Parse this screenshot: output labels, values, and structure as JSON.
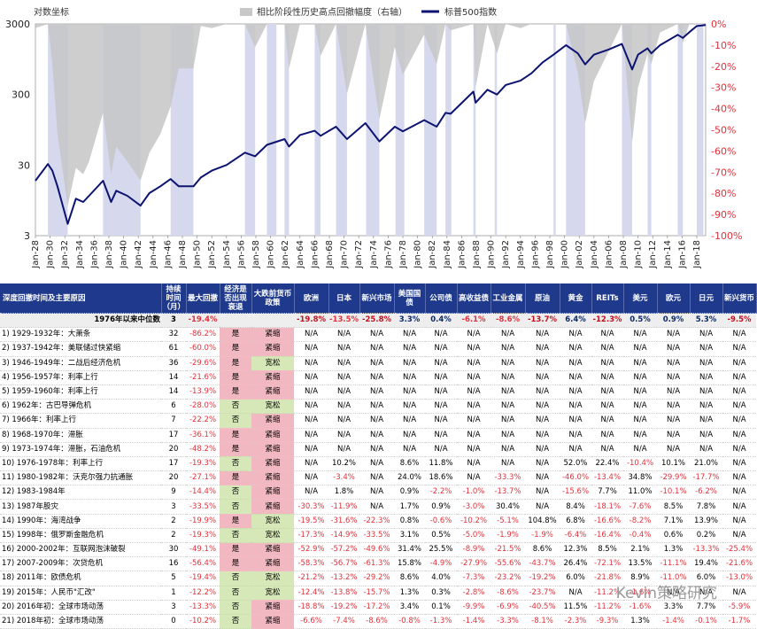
{
  "chart_data": {
    "type": "line",
    "left_axis_title": "对数坐标",
    "left_axis_ticks": [
      "3000",
      "300",
      "30",
      "3"
    ],
    "left_axis_values": [
      3000,
      300,
      30,
      3
    ],
    "right_axis_ticks": [
      "0%",
      "-10%",
      "-20%",
      "-30%",
      "-40%",
      "-50%",
      "-60%",
      "-70%",
      "-80%",
      "-90%",
      "-100%"
    ],
    "right_axis_values": [
      0,
      -10,
      -20,
      -30,
      -40,
      -50,
      -60,
      -70,
      -80,
      -90,
      -100
    ],
    "x_tick_labels": [
      "Jan-28",
      "Jan-30",
      "Jan-32",
      "Jan-34",
      "Jan-36",
      "Jan-38",
      "Jan-40",
      "Jan-42",
      "Jan-44",
      "Jan-46",
      "Jan-48",
      "Jan-50",
      "Jan-52",
      "Jan-54",
      "Jan-56",
      "Jan-58",
      "Jan-60",
      "Jan-62",
      "Jan-64",
      "Jan-66",
      "Jan-68",
      "Jan-70",
      "Jan-72",
      "Jan-74",
      "Jan-76",
      "Jan-78",
      "Jan-80",
      "Jan-82",
      "Jan-84",
      "Jan-86",
      "Jan-88",
      "Jan-90",
      "Jan-92",
      "Jan-94",
      "Jan-96",
      "Jan-98",
      "Jan-00",
      "Jan-02",
      "Jan-04",
      "Jan-06",
      "Jan-08",
      "Jan-10",
      "Jan-12",
      "Jan-14",
      "Jan-16",
      "Jan-18"
    ],
    "x_tick_years": [
      1928,
      1930,
      1932,
      1934,
      1936,
      1938,
      1940,
      1942,
      1944,
      1946,
      1948,
      1950,
      1952,
      1954,
      1956,
      1958,
      1960,
      1962,
      1964,
      1966,
      1968,
      1970,
      1972,
      1974,
      1976,
      1978,
      1980,
      1982,
      1984,
      1986,
      1988,
      1990,
      1992,
      1994,
      1996,
      1998,
      2000,
      2002,
      2004,
      2006,
      2008,
      2010,
      2012,
      2014,
      2016,
      2018
    ],
    "x_range": [
      1928,
      2019.2
    ],
    "legend": {
      "placement": "top",
      "area_label": "相比阶段性历史高点回撤幅度（右轴）",
      "line_label": "标普500指数"
    },
    "sp500": {
      "name": "标普500指数",
      "x": [
        1928.0,
        1929.7,
        1930.3,
        1931.0,
        1932.4,
        1933.5,
        1934.5,
        1935.3,
        1937.2,
        1938.3,
        1939.0,
        1940.5,
        1942.3,
        1943.5,
        1945.0,
        1946.4,
        1947.5,
        1949.5,
        1950.5,
        1952.0,
        1954.0,
        1956.5,
        1957.9,
        1959.5,
        1961.9,
        1962.5,
        1964.0,
        1966.0,
        1966.8,
        1968.9,
        1970.4,
        1972.9,
        1974.8,
        1976.9,
        1978.0,
        1980.9,
        1982.6,
        1983.8,
        1984.5,
        1987.6,
        1987.9,
        1989.5,
        1990.8,
        1992.0,
        1994.0,
        1995.5,
        1997.0,
        1998.5,
        2000.2,
        2001.8,
        2002.8,
        2004.0,
        2006.0,
        2007.8,
        2009.2,
        2010.0,
        2011.3,
        2011.8,
        2013.0,
        2015.4,
        2016.1,
        2017.0,
        2018.0,
        2019.2
      ],
      "values": [
        18,
        31,
        25,
        15,
        4.4,
        10,
        9,
        11,
        18,
        9,
        13,
        11,
        8,
        12,
        15,
        19,
        15,
        15,
        20,
        25,
        30,
        45,
        40,
        58,
        70,
        55,
        80,
        92,
        78,
        105,
        70,
        118,
        65,
        105,
        90,
        130,
        105,
        165,
        160,
        330,
        230,
        350,
        300,
        410,
        470,
        600,
        850,
        1100,
        1500,
        1150,
        800,
        1100,
        1300,
        1560,
        680,
        1100,
        1350,
        1150,
        1500,
        2100,
        1900,
        2300,
        2800,
        2900
      ]
    },
    "drawdown": {
      "name": "相比阶段性历史高点回撤幅度（右轴）",
      "x": [
        1928.0,
        1929.7,
        1930.3,
        1931.0,
        1932.4,
        1933.5,
        1934.5,
        1935.3,
        1937.2,
        1938.3,
        1939.0,
        1940.5,
        1942.3,
        1943.5,
        1945.0,
        1946.4,
        1947.5,
        1949.5,
        1950.5,
        1952.0,
        1954.0,
        1956.5,
        1957.9,
        1959.5,
        1961.9,
        1962.5,
        1964.0,
        1966.0,
        1966.8,
        1968.9,
        1970.4,
        1972.9,
        1974.8,
        1976.9,
        1978.0,
        1980.9,
        1982.6,
        1983.8,
        1984.5,
        1987.6,
        1987.9,
        1989.5,
        1990.8,
        1992.0,
        1994.0,
        1995.5,
        1997.0,
        1998.5,
        2000.2,
        2001.8,
        2002.8,
        2004.0,
        2006.0,
        2007.8,
        2009.2,
        2010.0,
        2011.3,
        2011.8,
        2013.0,
        2015.4,
        2016.1,
        2017.0,
        2018.0,
        2019.2
      ],
      "values": [
        -2,
        0,
        -19,
        -52,
        -86,
        -68,
        -71,
        -65,
        -42,
        -71,
        -58,
        -65,
        -74,
        -61,
        -52,
        -39,
        -21,
        -21,
        -1,
        -2,
        0,
        0,
        -11,
        0,
        0,
        -21,
        0,
        0,
        -15,
        0,
        -33,
        0,
        -45,
        -11,
        -24,
        -5,
        -19,
        0,
        -3,
        0,
        -30,
        0,
        -14,
        0,
        -2,
        0,
        0,
        0,
        0,
        -23,
        -47,
        -27,
        -13,
        0,
        -56,
        -30,
        -14,
        -19,
        -4,
        0,
        -9,
        0,
        0,
        0
      ]
    },
    "shaded_periods": [
      [
        1929.7,
        1932.4
      ],
      [
        1937.2,
        1942.3
      ],
      [
        1946.4,
        1949.5
      ],
      [
        1956.5,
        1957.9
      ],
      [
        1959.5,
        1960.8
      ],
      [
        1961.9,
        1962.5
      ],
      [
        1966.0,
        1966.8
      ],
      [
        1968.9,
        1970.4
      ],
      [
        1973.0,
        1974.8
      ],
      [
        1977.0,
        1978.2
      ],
      [
        1980.9,
        1982.6
      ],
      [
        1983.8,
        1984.6
      ],
      [
        1987.6,
        1987.9
      ],
      [
        1990.5,
        1990.8
      ],
      [
        1998.5,
        1998.8
      ],
      [
        2000.2,
        2002.8
      ],
      [
        2007.8,
        2009.2
      ],
      [
        2011.3,
        2011.8
      ],
      [
        2015.4,
        2016.1
      ],
      [
        2018.0,
        2018.9
      ]
    ]
  },
  "table": {
    "headers": [
      "深度回撤时间及主要原因",
      "持续时间（月）",
      "最大回撤",
      "经济是否出现衰退",
      "大跌前货币政策",
      "欧洲",
      "日本",
      "新兴市场",
      "美国国债",
      "公司债",
      "高收益债",
      "工业金属",
      "原油",
      "黄金",
      "REITs",
      "美元",
      "欧元",
      "日元",
      "新兴货币"
    ],
    "median": {
      "label": "1976年以来中位数",
      "months": "3",
      "maxdd": "-19.4%",
      "values": [
        "-19.8%",
        "-13.5%",
        "-25.8%",
        "3.3%",
        "0.4%",
        "-6.1%",
        "-8.6%",
        "-13.7%",
        "6.4%",
        "-12.3%",
        "0.5%",
        "0.9%",
        "5.3%",
        "-9.5%"
      ],
      "styles": [
        "m-neg-lt",
        "",
        "m-neg",
        "m-pos-lt",
        "m-pos-lt",
        "",
        "",
        "m-neg-lt",
        "m-pos",
        "m-neg-lt",
        "m-pos-lt",
        "m-pos-lt",
        "m-pos",
        "m-neg-lt"
      ]
    },
    "rows": [
      {
        "name": "1) 1929-1932年：大萧条",
        "months": "32",
        "maxdd": "-86.2%",
        "rec": "是",
        "policy": "紧缩",
        "values": [
          "N/A",
          "N/A",
          "N/A",
          "N/A",
          "N/A",
          "N/A",
          "N/A",
          "N/A",
          "N/A",
          "N/A",
          "N/A",
          "N/A",
          "N/A",
          "N/A"
        ]
      },
      {
        "name": "2) 1937-1942年：美联储过快紧缩",
        "months": "61",
        "maxdd": "-60.0%",
        "rec": "是",
        "policy": "紧缩",
        "values": [
          "N/A",
          "N/A",
          "N/A",
          "N/A",
          "N/A",
          "N/A",
          "N/A",
          "N/A",
          "N/A",
          "N/A",
          "N/A",
          "N/A",
          "N/A",
          "N/A"
        ]
      },
      {
        "name": "3) 1946-1949年：二战后经济危机",
        "months": "36",
        "maxdd": "-29.6%",
        "rec": "是",
        "policy": "宽松",
        "values": [
          "N/A",
          "N/A",
          "N/A",
          "N/A",
          "N/A",
          "N/A",
          "N/A",
          "N/A",
          "N/A",
          "N/A",
          "N/A",
          "N/A",
          "N/A",
          "N/A"
        ]
      },
      {
        "name": "4) 1956-1957年：利率上行",
        "months": "14",
        "maxdd": "-21.6%",
        "rec": "是",
        "policy": "紧缩",
        "values": [
          "N/A",
          "N/A",
          "N/A",
          "N/A",
          "N/A",
          "N/A",
          "N/A",
          "N/A",
          "N/A",
          "N/A",
          "N/A",
          "N/A",
          "N/A",
          "N/A"
        ]
      },
      {
        "name": "5) 1959-1960年：利率上行",
        "months": "14",
        "maxdd": "-13.9%",
        "rec": "是",
        "policy": "紧缩",
        "values": [
          "N/A",
          "N/A",
          "N/A",
          "N/A",
          "N/A",
          "N/A",
          "N/A",
          "N/A",
          "N/A",
          "N/A",
          "N/A",
          "N/A",
          "N/A",
          "N/A"
        ]
      },
      {
        "name": "6) 1962年：古巴导弹危机",
        "months": "6",
        "maxdd": "-28.0%",
        "rec": "否",
        "policy": "宽松",
        "values": [
          "N/A",
          "N/A",
          "N/A",
          "N/A",
          "N/A",
          "N/A",
          "N/A",
          "N/A",
          "N/A",
          "N/A",
          "N/A",
          "N/A",
          "N/A",
          "N/A"
        ]
      },
      {
        "name": "7) 1966年：利率上行",
        "months": "7",
        "maxdd": "-22.2%",
        "rec": "否",
        "policy": "紧缩",
        "values": [
          "N/A",
          "N/A",
          "N/A",
          "N/A",
          "N/A",
          "N/A",
          "N/A",
          "N/A",
          "N/A",
          "N/A",
          "N/A",
          "N/A",
          "N/A",
          "N/A"
        ]
      },
      {
        "name": "8) 1968-1970年：滞胀",
        "months": "17",
        "maxdd": "-36.1%",
        "rec": "是",
        "policy": "紧缩",
        "values": [
          "N/A",
          "N/A",
          "N/A",
          "N/A",
          "N/A",
          "N/A",
          "N/A",
          "N/A",
          "N/A",
          "N/A",
          "N/A",
          "N/A",
          "N/A",
          "N/A"
        ]
      },
      {
        "name": "9) 1973-1974年：滞胀，石油危机",
        "months": "20",
        "maxdd": "-48.2%",
        "rec": "是",
        "policy": "紧缩",
        "values": [
          "N/A",
          "N/A",
          "N/A",
          "N/A",
          "N/A",
          "N/A",
          "N/A",
          "N/A",
          "N/A",
          "N/A",
          "N/A",
          "N/A",
          "N/A",
          "N/A"
        ]
      },
      {
        "name": "10) 1976-1978年：利率上行",
        "months": "17",
        "maxdd": "-19.3%",
        "rec": "否",
        "policy": "紧缩",
        "values": [
          "N/A",
          "10.2%",
          "N/A",
          "8.6%",
          "11.8%",
          "N/A",
          "N/A",
          "N/A",
          "52.0%",
          "22.4%",
          "-10.4%",
          "10.1%",
          "21.0%",
          "N/A"
        ]
      },
      {
        "name": "11) 1980-1982年：沃克尔强力抗通胀",
        "months": "20",
        "maxdd": "-27.1%",
        "rec": "是",
        "policy": "紧缩",
        "values": [
          "N/A",
          "-3.4%",
          "N/A",
          "24.0%",
          "18.6%",
          "N/A",
          "-33.3%",
          "N/A",
          "-46.0%",
          "-13.4%",
          "34.8%",
          "-29.9%",
          "-17.7%",
          "N/A"
        ]
      },
      {
        "name": "12) 1983-1984年",
        "months": "9",
        "maxdd": "-14.4%",
        "rec": "否",
        "policy": "紧缩",
        "values": [
          "N/A",
          "1.8%",
          "N/A",
          "0.9%",
          "-2.2%",
          "-1.0%",
          "-13.7%",
          "N/A",
          "-15.6%",
          "7.7%",
          "11.0%",
          "-10.1%",
          "-6.2%",
          "N/A"
        ]
      },
      {
        "name": "13) 1987年股灾",
        "months": "3",
        "maxdd": "-33.5%",
        "rec": "否",
        "policy": "紧缩",
        "values": [
          "-30.3%",
          "-11.9%",
          "N/A",
          "1.7%",
          "0.9%",
          "-3.0%",
          "30.4%",
          "N/A",
          "8.4%",
          "-18.1%",
          "-7.6%",
          "8.5%",
          "7.8%",
          "N/A"
        ]
      },
      {
        "name": "14) 1990年：海湾战争",
        "months": "2",
        "maxdd": "-19.9%",
        "rec": "是",
        "policy": "宽松",
        "values": [
          "-19.5%",
          "-31.6%",
          "-22.3%",
          "0.8%",
          "-0.6%",
          "-10.2%",
          "-5.1%",
          "104.8%",
          "6.8%",
          "-16.6%",
          "-8.2%",
          "7.1%",
          "13.9%",
          "N/A"
        ]
      },
      {
        "name": "15) 1998年：俄罗斯金融危机",
        "months": "2",
        "maxdd": "-19.3%",
        "rec": "否",
        "policy": "宽松",
        "values": [
          "-17.3%",
          "-14.9%",
          "-33.5%",
          "3.1%",
          "0.5%",
          "-5.0%",
          "-1.9%",
          "-1.9%",
          "-6.4%",
          "-16.4%",
          "-0.4%",
          "0.6%",
          "0.2%",
          "N/A"
        ]
      },
      {
        "name": "16) 2000-2002年：互联网泡沫破裂",
        "months": "30",
        "maxdd": "-49.1%",
        "rec": "是",
        "policy": "紧缩",
        "values": [
          "-52.9%",
          "-57.2%",
          "-49.6%",
          "31.4%",
          "25.5%",
          "-8.9%",
          "-21.5%",
          "8.6%",
          "12.3%",
          "8.5%",
          "2.1%",
          "1.3%",
          "-13.3%",
          "-25.4%"
        ]
      },
      {
        "name": "17) 2007-2009年：次贷危机",
        "months": "16",
        "maxdd": "-56.4%",
        "rec": "是",
        "policy": "紧缩",
        "values": [
          "-58.3%",
          "-56.7%",
          "-61.3%",
          "15.8%",
          "-4.9%",
          "-27.9%",
          "-55.6%",
          "-43.7%",
          "26.4%",
          "-72.1%",
          "13.5%",
          "-11.1%",
          "19.4%",
          "-21.6%"
        ]
      },
      {
        "name": "18) 2011年：欧债危机",
        "months": "5",
        "maxdd": "-19.4%",
        "rec": "否",
        "policy": "宽松",
        "values": [
          "-21.2%",
          "-13.2%",
          "-29.2%",
          "8.6%",
          "4.0%",
          "-7.3%",
          "-23.2%",
          "-19.2%",
          "6.0%",
          "-21.8%",
          "8.9%",
          "-11.0%",
          "6.0%",
          "-13.0%"
        ]
      },
      {
        "name": "19) 2015年：人民币\"汇改\"",
        "months": "1",
        "maxdd": "-12.2%",
        "rec": "否",
        "policy": "宽松",
        "values": [
          "-12.4%",
          "-13.8%",
          "-15.7%",
          "1.3%",
          "0.3%",
          "-2.8%",
          "-8.6%",
          "-23.7%",
          "N/A",
          "-11.2%",
          "-1.6%",
          "N/A",
          "N/A",
          "N/A"
        ]
      },
      {
        "name": "20) 2016年初：全球市场动荡",
        "months": "3",
        "maxdd": "-13.3%",
        "rec": "否",
        "policy": "紧缩",
        "values": [
          "-18.8%",
          "-19.2%",
          "-17.2%",
          "3.4%",
          "0.1%",
          "-9.9%",
          "-6.9%",
          "-40.5%",
          "11.5%",
          "-11.2%",
          "-1.6%",
          "3.3%",
          "7.7%",
          "-5.9%"
        ]
      },
      {
        "name": "21) 2018年初：全球市场动荡",
        "months": "0",
        "maxdd": "-10.2%",
        "rec": "否",
        "policy": "紧缩",
        "values": [
          "-6.6%",
          "-7.4%",
          "-8.6%",
          "-0.8%",
          "-1.3%",
          "-1.4%",
          "-3.3%",
          "-8.1%",
          "-2.3%",
          "-9.3%",
          "1.3%",
          "-1.4%",
          "-0.1%",
          "-1.7%"
        ]
      }
    ]
  },
  "watermark": "Kevin策略研究"
}
